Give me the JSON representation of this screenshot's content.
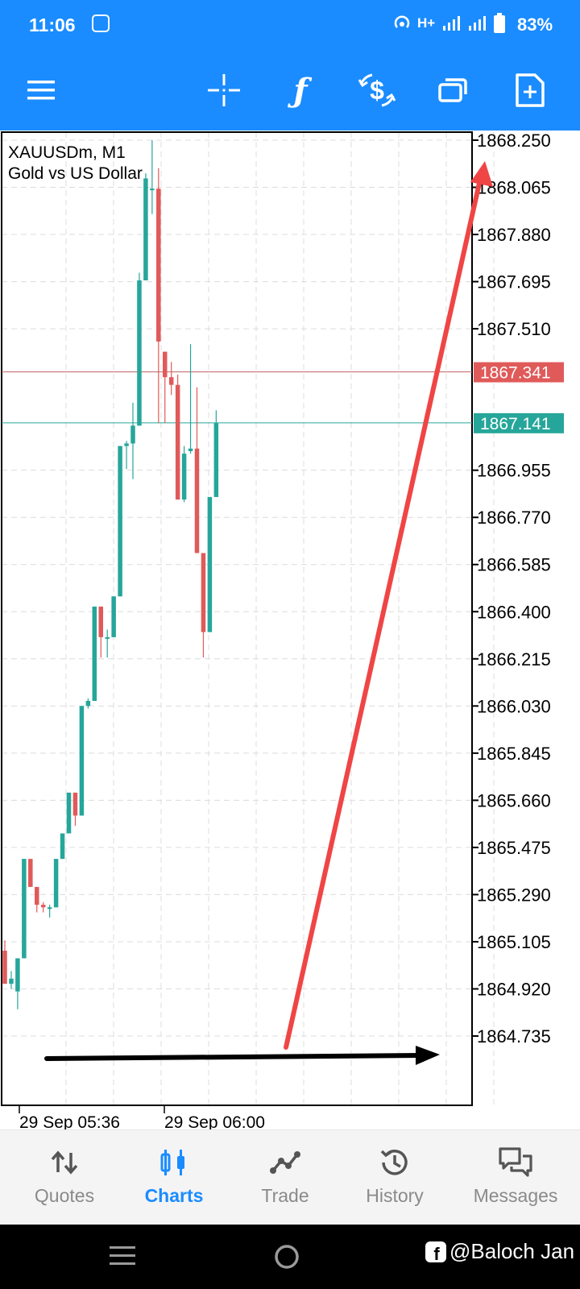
{
  "status_bar": {
    "time": "11:06",
    "network_type": "H+",
    "battery_percent": "83%"
  },
  "toolbar": {
    "icons": [
      "menu-icon",
      "crosshair-icon",
      "indicators-icon",
      "trade-dollar-icon",
      "windows-icon",
      "new-chart-icon"
    ]
  },
  "chart": {
    "symbol_line": "XAUUSDm, M1",
    "description_line": "Gold vs US Dollar",
    "price_ticks": [
      "1868.250",
      "1868.065",
      "1867.880",
      "1867.695",
      "1867.510",
      "1866.955",
      "1866.770",
      "1866.585",
      "1866.400",
      "1866.215",
      "1866.030",
      "1865.845",
      "1865.660",
      "1865.475",
      "1865.290",
      "1865.105",
      "1864.920",
      "1864.735"
    ],
    "ask_price": "1867.341",
    "bid_price": "1867.141",
    "time_labels": [
      "29 Sep 05:36",
      "29 Sep 06:00"
    ],
    "colors": {
      "bull": "#26a69a",
      "bear": "#e05a5a",
      "ask_line": "#c06060",
      "bid_line": "#26a69a",
      "annotation_red": "#f04545",
      "annotation_black": "#000000"
    }
  },
  "chart_data": {
    "type": "candlestick",
    "ylim": [
      1864.6,
      1868.25
    ],
    "candles": [
      {
        "o": 1865.07,
        "h": 1865.11,
        "l": 1864.94,
        "c": 1864.94
      },
      {
        "o": 1864.94,
        "h": 1864.99,
        "l": 1864.92,
        "c": 1864.96
      },
      {
        "o": 1864.91,
        "h": 1865.04,
        "l": 1864.84,
        "c": 1865.04
      },
      {
        "o": 1865.04,
        "h": 1865.43,
        "l": 1865.04,
        "c": 1865.43
      },
      {
        "o": 1865.43,
        "h": 1865.43,
        "l": 1865.32,
        "c": 1865.32
      },
      {
        "o": 1865.32,
        "h": 1865.32,
        "l": 1865.22,
        "c": 1865.25
      },
      {
        "o": 1865.25,
        "h": 1865.26,
        "l": 1865.22,
        "c": 1865.24
      },
      {
        "o": 1865.24,
        "h": 1865.25,
        "l": 1865.2,
        "c": 1865.24
      },
      {
        "o": 1865.24,
        "h": 1865.43,
        "l": 1865.24,
        "c": 1865.43
      },
      {
        "o": 1865.43,
        "h": 1865.53,
        "l": 1865.43,
        "c": 1865.53
      },
      {
        "o": 1865.53,
        "h": 1865.69,
        "l": 1865.53,
        "c": 1865.69
      },
      {
        "o": 1865.69,
        "h": 1865.69,
        "l": 1865.56,
        "c": 1865.6
      },
      {
        "o": 1865.6,
        "h": 1866.03,
        "l": 1865.6,
        "c": 1866.03
      },
      {
        "o": 1866.03,
        "h": 1866.06,
        "l": 1866.02,
        "c": 1866.05
      },
      {
        "o": 1866.05,
        "h": 1866.42,
        "l": 1866.05,
        "c": 1866.42
      },
      {
        "o": 1866.42,
        "h": 1866.42,
        "l": 1866.22,
        "c": 1866.3
      },
      {
        "o": 1866.3,
        "h": 1866.33,
        "l": 1866.22,
        "c": 1866.3
      },
      {
        "o": 1866.3,
        "h": 1866.46,
        "l": 1866.3,
        "c": 1866.46
      },
      {
        "o": 1866.46,
        "h": 1867.05,
        "l": 1866.46,
        "c": 1867.05
      },
      {
        "o": 1867.05,
        "h": 1867.07,
        "l": 1866.96,
        "c": 1867.06
      },
      {
        "o": 1867.06,
        "h": 1867.22,
        "l": 1866.92,
        "c": 1867.13
      },
      {
        "o": 1867.13,
        "h": 1867.73,
        "l": 1867.13,
        "c": 1867.7
      },
      {
        "o": 1867.7,
        "h": 1868.12,
        "l": 1867.7,
        "c": 1868.1
      },
      {
        "o": 1868.06,
        "h": 1868.25,
        "l": 1867.96,
        "c": 1868.06
      },
      {
        "o": 1868.06,
        "h": 1868.14,
        "l": 1867.14,
        "c": 1867.46
      },
      {
        "o": 1867.42,
        "h": 1867.42,
        "l": 1867.14,
        "c": 1867.32
      },
      {
        "o": 1867.32,
        "h": 1867.38,
        "l": 1867.25,
        "c": 1867.29
      },
      {
        "o": 1867.29,
        "h": 1867.33,
        "l": 1866.84,
        "c": 1866.84
      },
      {
        "o": 1866.84,
        "h": 1867.05,
        "l": 1866.83,
        "c": 1867.02
      },
      {
        "o": 1867.03,
        "h": 1867.45,
        "l": 1867.02,
        "c": 1867.04
      },
      {
        "o": 1867.04,
        "h": 1867.28,
        "l": 1866.63,
        "c": 1866.63
      },
      {
        "o": 1866.63,
        "h": 1866.63,
        "l": 1866.22,
        "c": 1866.32
      },
      {
        "o": 1866.32,
        "h": 1866.85,
        "l": 1866.32,
        "c": 1866.85
      },
      {
        "o": 1866.85,
        "h": 1867.19,
        "l": 1866.85,
        "c": 1867.14
      }
    ]
  },
  "bottom_nav": {
    "items": [
      {
        "label": "Quotes",
        "icon": "quotes-icon",
        "active": false
      },
      {
        "label": "Charts",
        "icon": "charts-icon",
        "active": true
      },
      {
        "label": "Trade",
        "icon": "trade-icon",
        "active": false
      },
      {
        "label": "History",
        "icon": "history-icon",
        "active": false
      },
      {
        "label": "Messages",
        "icon": "messages-icon",
        "active": false
      }
    ],
    "accent_color": "#1a8cff"
  },
  "watermark": {
    "text": "@Baloch Jan"
  }
}
